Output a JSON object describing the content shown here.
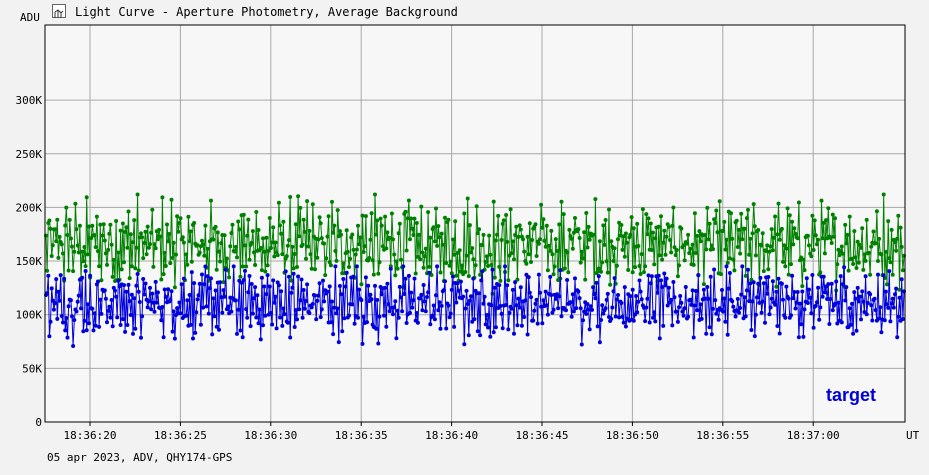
{
  "window": {
    "title": "Light Curve - Aperture Photometry, Average Background",
    "icon": "light-curve-app-icon"
  },
  "footer": "05 apr 2023, ADV, QHY174-GPS",
  "colors": {
    "target": "#0000dd",
    "background": "#008000",
    "grid": "#a8a8a8",
    "plot_bg": "#f7f7f7"
  },
  "chart_data": {
    "type": "line",
    "title": "Light Curve - Aperture Photometry, Average Background",
    "ylabel": "ADU",
    "xlabel": "UT",
    "ylim": [
      0,
      370000
    ],
    "xlim": [
      "18:36:17.5",
      "18:37:05.1"
    ],
    "y_ticks": [
      0,
      50000,
      100000,
      150000,
      200000,
      250000,
      300000
    ],
    "y_tick_labels": [
      "0",
      "50K",
      "100K",
      "150K",
      "200K",
      "250K",
      "300K"
    ],
    "x_tick_labels": [
      "18:36:20",
      "18:36:25",
      "18:36:30",
      "18:36:35",
      "18:36:40",
      "18:36:45",
      "18:36:50",
      "18:36:55",
      "18:37:00"
    ],
    "grid": true,
    "legend": [
      {
        "name": "target",
        "position": "bottom-right"
      }
    ],
    "frame_rate_fps": 16,
    "series": [
      {
        "name": "target",
        "color": "#0000dd",
        "mean": 113000,
        "range": [
          70000,
          145000
        ],
        "description_values": [
          118000,
          106000,
          127000,
          95000,
          112000,
          131000,
          99000,
          118000,
          108000,
          124000,
          89000,
          115000,
          103000,
          121000,
          98000,
          112000,
          132000,
          101000,
          117000,
          95000,
          109000,
          126000,
          104000,
          119000,
          91000,
          113000,
          122000,
          100000,
          115000,
          108000
        ]
      },
      {
        "name": "",
        "color": "#008000",
        "mean": 163000,
        "range": [
          110000,
          212000
        ],
        "description_values": [
          165000,
          152000,
          178000,
          160000,
          170000,
          145000,
          183000,
          158000,
          168000,
          150000,
          175000,
          162000,
          156000,
          185000,
          161000,
          172000,
          148000,
          167000,
          179000,
          155000,
          163000,
          190000,
          158000,
          171000,
          153000,
          166000,
          180000,
          159000,
          169000,
          162000
        ]
      }
    ]
  }
}
